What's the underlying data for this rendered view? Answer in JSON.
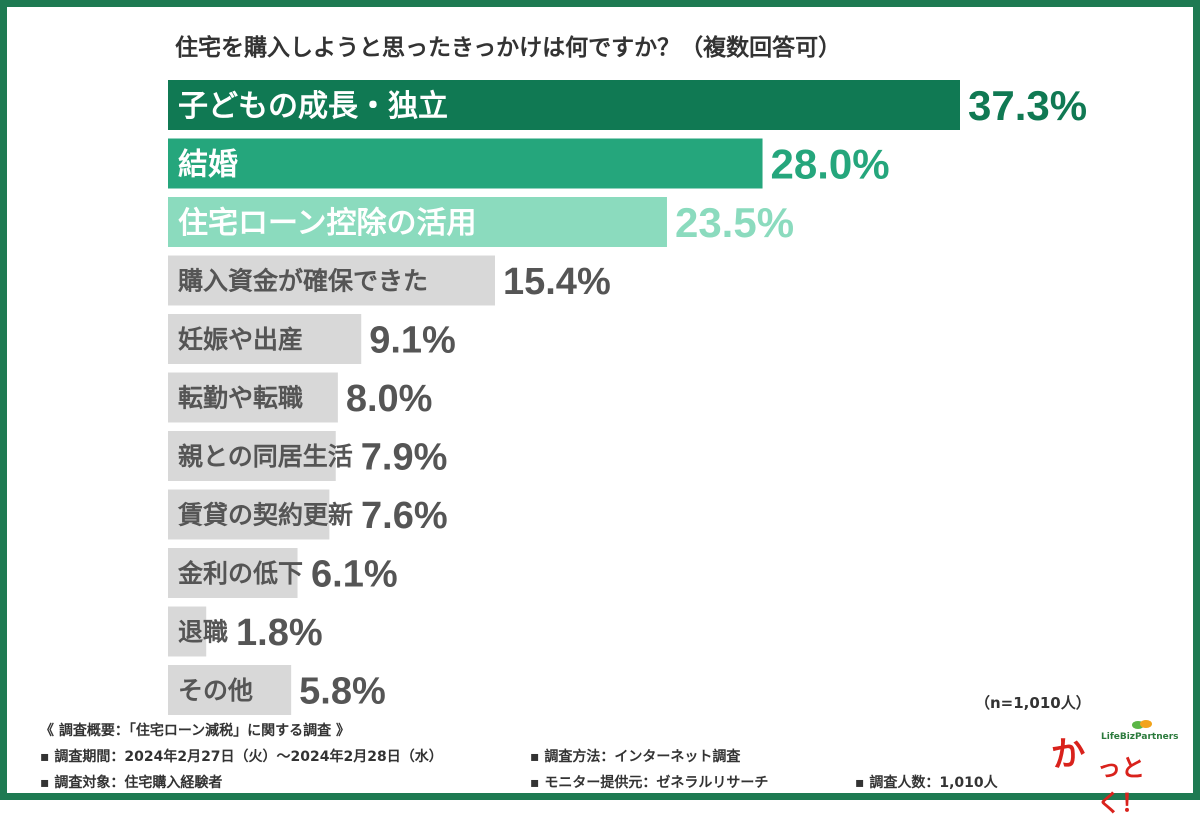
{
  "chart_data": {
    "type": "bar",
    "orientation": "horizontal",
    "title": "住宅を購入しようと思ったきっかけは何ですか？（複数回答可）",
    "categories": [
      "子どもの成長・独立",
      "結婚",
      "住宅ローン控除の活用",
      "購入資金が確保できた",
      "妊娠や出産",
      "転勤や転職",
      "親との同居生活",
      "賃貸の契約更新",
      "金利の低下",
      "退職",
      "その他"
    ],
    "values": [
      37.3,
      28.0,
      23.5,
      15.4,
      9.1,
      8.0,
      7.9,
      7.6,
      6.1,
      1.8,
      5.8
    ],
    "value_labels": [
      "37.3%",
      "28.0%",
      "23.5%",
      "15.4%",
      "9.1%",
      "8.0%",
      "7.9%",
      "7.6%",
      "6.1%",
      "1.8%",
      "5.8%"
    ],
    "unit": "%",
    "xlim": [
      0,
      37.3
    ],
    "grid": false,
    "bar_colors": [
      "#107953",
      "#25a67c",
      "#8bdbbe",
      "#d8d8d8",
      "#d8d8d8",
      "#d8d8d8",
      "#d8d8d8",
      "#d8d8d8",
      "#d8d8d8",
      "#d8d8d8",
      "#d8d8d8"
    ],
    "label_colors": [
      "#ffffff",
      "#ffffff",
      "#ffffff",
      "#555555",
      "#555555",
      "#555555",
      "#555555",
      "#555555",
      "#555555",
      "#555555",
      "#555555"
    ],
    "value_colors": [
      "#107953",
      "#25a67c",
      "#8bdbbe",
      "#555555",
      "#555555",
      "#555555",
      "#555555",
      "#555555",
      "#555555",
      "#555555",
      "#555555"
    ],
    "sample_note": "（n=1,010人）"
  },
  "footer": {
    "heading": "《 調査概要：「住宅ローン減税」に関する調査 》",
    "period": "▪ 調査期間：2024年2月27日（火）～2024年2月28日（水）",
    "target": "▪ 調査対象：住宅購入経験者",
    "method": "▪ 調査方法：インターネット調査",
    "panel": "▪ モニター提供元：ゼネラルリサーチ",
    "count": "▪ 調査人数：1,010人"
  },
  "logo": {
    "kana_main": "か",
    "kana_rest": "っとく！",
    "brand": "LifeBizPartners"
  },
  "colors": {
    "frame": "#1e7a52",
    "logo_red": "#d9221c"
  }
}
